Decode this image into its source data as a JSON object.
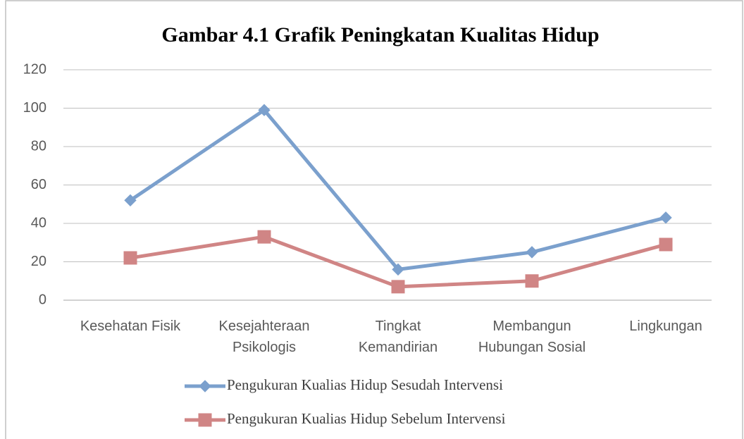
{
  "chart_data": {
    "type": "line",
    "title": "Gambar 4.1 Grafik Peningkatan Kualitas Hidup",
    "categories": [
      "Kesehatan Fisik",
      "Kesejahteraan Psikologis",
      "Tingkat Kemandirian",
      "Membangun Hubungan Sosial",
      "Lingkungan"
    ],
    "series": [
      {
        "name": "Pengukuran Kualias Hidup Sesudah Intervensi",
        "color": "#7ba0cd",
        "marker": "diamond",
        "values": [
          52,
          99,
          16,
          25,
          43
        ]
      },
      {
        "name": "Pengukuran Kualias Hidup Sebelum Intervensi",
        "color": "#d08585",
        "marker": "square",
        "values": [
          22,
          33,
          7,
          10,
          29
        ]
      }
    ],
    "ylim": [
      0,
      120
    ],
    "yticks": [
      0,
      20,
      40,
      60,
      80,
      100,
      120
    ],
    "grid": true,
    "legend": "bottom"
  }
}
